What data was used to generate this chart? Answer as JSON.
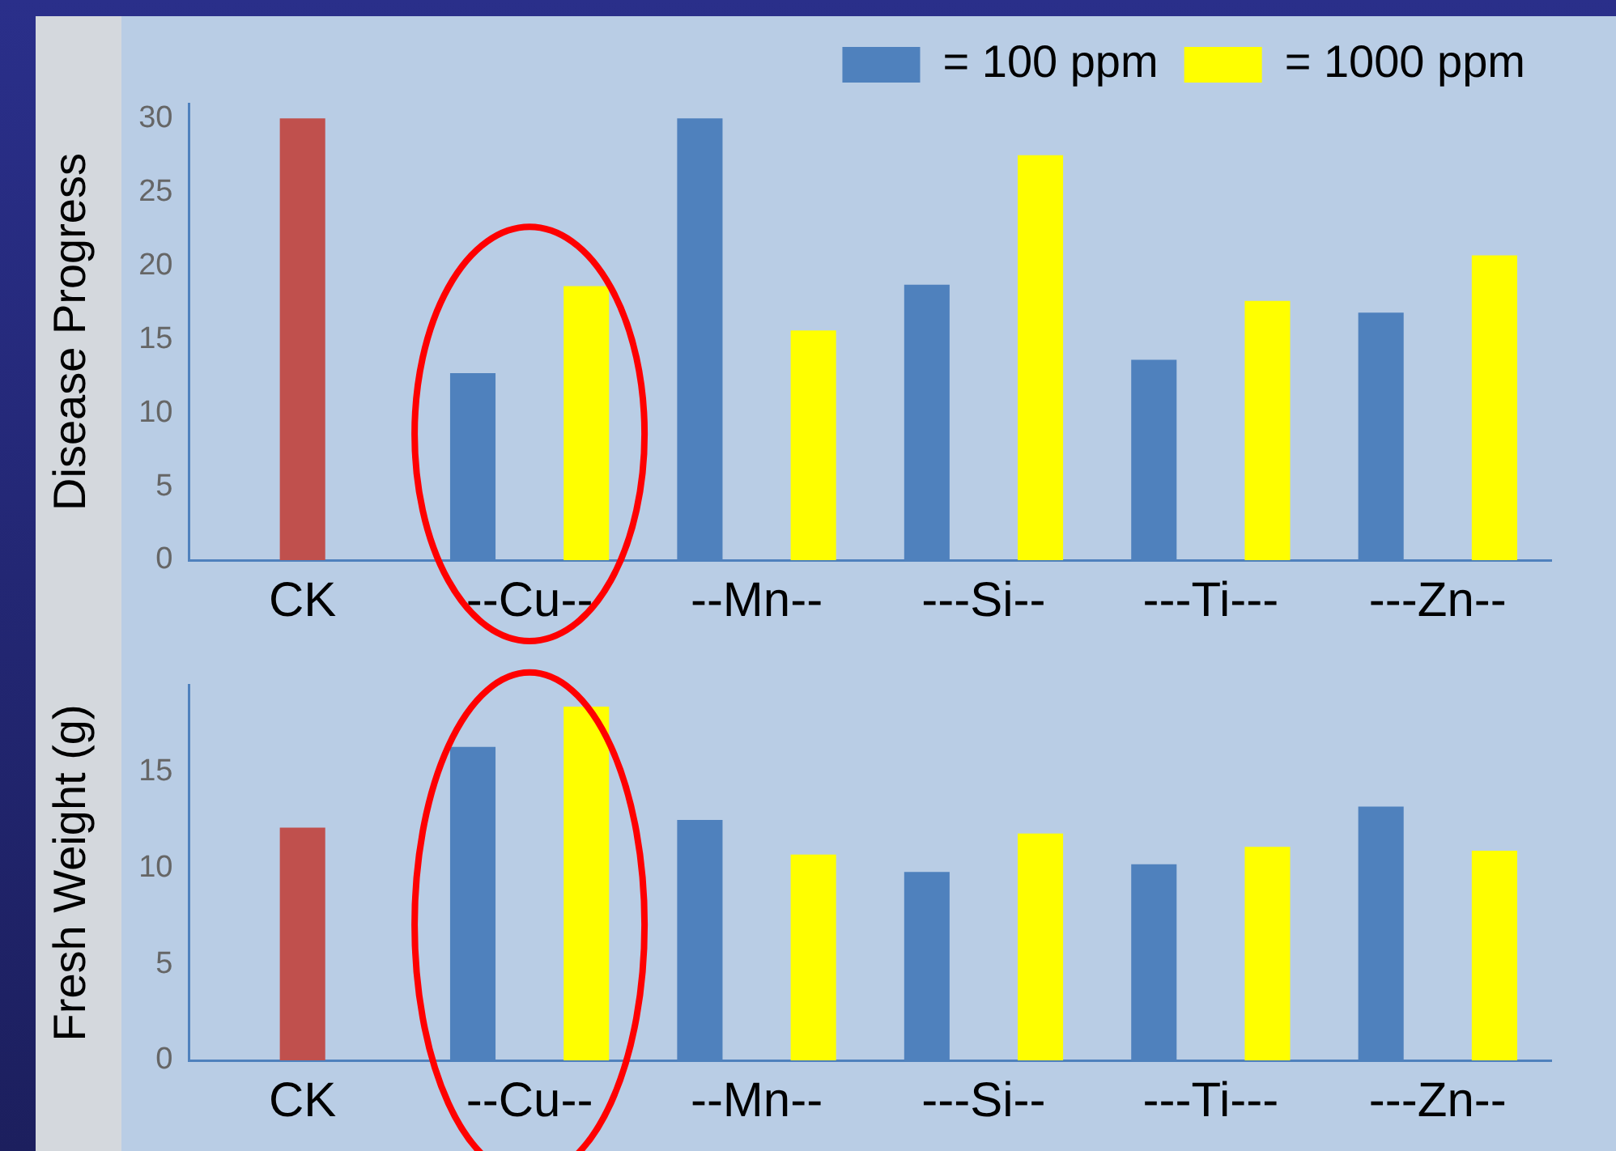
{
  "chart_data": [
    {
      "type": "bar",
      "ylabel": "Disease Progress",
      "categories": [
        "CK",
        "--Cu--",
        "--Mn--",
        "---Si--",
        "---Ti---",
        "---Zn--"
      ],
      "series": [
        {
          "color": "#c0504d",
          "values": [
            30,
            null,
            null,
            null,
            null,
            null
          ]
        },
        {
          "name": "= 100 ppm",
          "color": "#4f81bd",
          "values": [
            null,
            12.7,
            30,
            18.7,
            13.6,
            16.8
          ]
        },
        {
          "name": "= 1000 ppm",
          "color": "#ffff00",
          "values": [
            null,
            18.6,
            15.6,
            27.5,
            17.6,
            20.7
          ]
        }
      ],
      "ylim": [
        0,
        31
      ],
      "yticks": [
        0,
        5,
        10,
        15,
        20,
        25,
        30
      ],
      "legend": "top right"
    },
    {
      "type": "bar",
      "ylabel": "Fresh Weight (g)",
      "categories": [
        "CK",
        "--Cu--",
        "--Mn--",
        "---Si--",
        "---Ti---",
        "---Zn--"
      ],
      "series": [
        {
          "color": "#c0504d",
          "values": [
            12.1,
            null,
            null,
            null,
            null,
            null
          ]
        },
        {
          "color": "#4f81bd",
          "values": [
            null,
            16.3,
            12.5,
            9.8,
            10.2,
            13.2
          ]
        },
        {
          "color": "#ffff00",
          "values": [
            null,
            18.4,
            10.7,
            11.8,
            11.1,
            10.9
          ]
        }
      ],
      "ylim": [
        0,
        19.5
      ],
      "yticks": [
        0,
        5,
        10,
        15
      ]
    }
  ]
}
